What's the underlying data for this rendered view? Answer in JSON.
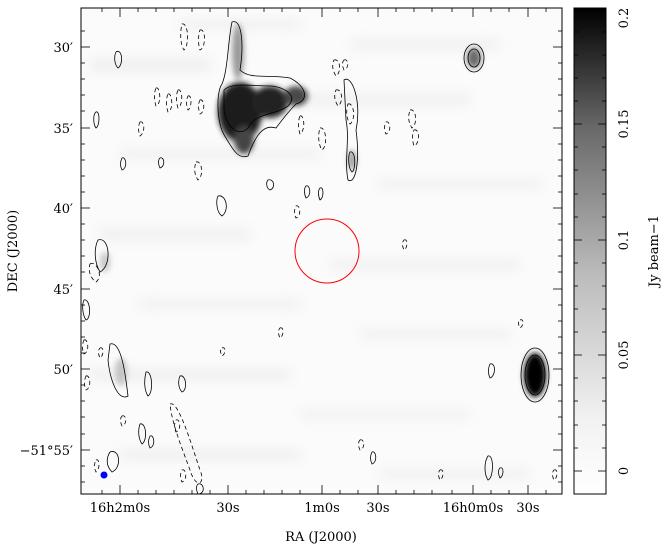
{
  "figure": {
    "colors": {
      "frame": "#000000",
      "source_circle": "#ff0000",
      "beam_marker": "#0000ff",
      "contour": "#000000"
    },
    "y_axis": {
      "label": "DEC (J2000)",
      "ticks": [
        "30′",
        "35′",
        "40′",
        "45′",
        "50′",
        "−51°55′"
      ]
    },
    "x_axis": {
      "label": "RA (J2000)",
      "ticks": [
        "16h2m0s",
        "30s",
        "1m0s",
        "30s",
        "16h0m0s",
        "30s"
      ]
    },
    "colorbar": {
      "label": "Jy beam−1",
      "ticks": [
        "0",
        "0.05",
        "0.1",
        "0.15",
        "0.2"
      ],
      "range": [
        -0.01,
        0.2
      ],
      "gradient": [
        "#ffffff",
        "#000000"
      ]
    }
  }
}
